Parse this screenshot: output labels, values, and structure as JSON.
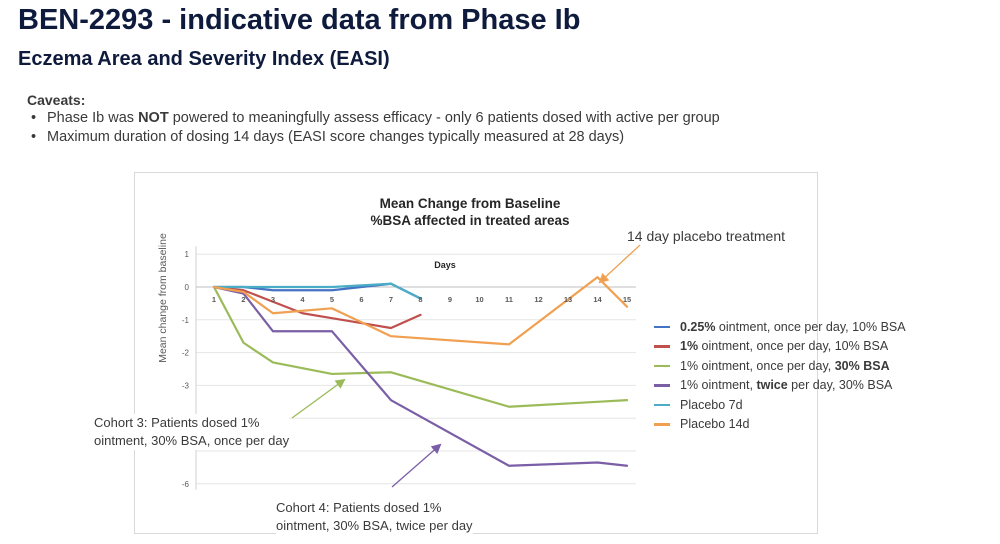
{
  "header": {
    "title": "BEN-2293 - indicative data from Phase Ib",
    "subtitle": "Eczema Area and Severity Index (EASI)"
  },
  "caveats": {
    "heading": "Caveats:",
    "items": [
      {
        "pre": "Phase Ib was ",
        "bold": "NOT",
        "post": " powered to meaningfully assess efficacy - only 6 patients dosed with active per group"
      },
      {
        "pre": "Maximum duration of dosing 14 days (EASI score changes typically measured at 28 days)",
        "bold": "",
        "post": ""
      }
    ]
  },
  "chart_data": {
    "type": "line",
    "title_line1": "Mean Change from Baseline",
    "title_line2": "%BSA affected in treated areas",
    "xlabel": "Days",
    "ylabel": "Mean change from baseline",
    "x_ticks": [
      "1",
      "2",
      "3",
      "4",
      "5",
      "6",
      "7",
      "8",
      "9",
      "10",
      "11",
      "12",
      "13",
      "14",
      "15"
    ],
    "y_ticks": [
      1,
      0,
      -1,
      -2,
      -3,
      -6
    ],
    "ylim": [
      -6,
      1
    ],
    "xlim": [
      1,
      15
    ],
    "series": [
      {
        "name": "0.25% ointment, once per day, 10% BSA",
        "name_parts": [
          {
            "t": "0.25%",
            "b": true
          },
          {
            "t": " ointment, once per day, 10% BSA",
            "b": false
          }
        ],
        "color": "#4472c4",
        "points": [
          [
            1,
            0
          ],
          [
            2,
            0
          ],
          [
            3,
            -0.1
          ],
          [
            5,
            -0.1
          ],
          [
            7,
            0.1
          ],
          [
            8,
            -0.35
          ]
        ]
      },
      {
        "name": "1% ointment, once per day, 10% BSA",
        "name_parts": [
          {
            "t": "1%",
            "b": true
          },
          {
            "t": " ointment, once per day, 10% BSA",
            "b": false
          }
        ],
        "color": "#c0504d",
        "points": [
          [
            1,
            0
          ],
          [
            2,
            -0.1
          ],
          [
            3,
            -0.45
          ],
          [
            4,
            -0.8
          ],
          [
            5,
            -0.95
          ],
          [
            7,
            -1.25
          ],
          [
            8,
            -0.85
          ]
        ]
      },
      {
        "name": "1% ointment, once per day, 30% BSA",
        "name_parts": [
          {
            "t": "1% ointment, once per day, ",
            "b": false
          },
          {
            "t": "30% BSA",
            "b": true
          }
        ],
        "color": "#9bbb59",
        "points": [
          [
            1,
            0
          ],
          [
            2,
            -1.7
          ],
          [
            3,
            -2.3
          ],
          [
            5,
            -2.65
          ],
          [
            7,
            -2.6
          ],
          [
            11,
            -3.65
          ],
          [
            14,
            -3.5
          ],
          [
            15,
            -3.45
          ]
        ]
      },
      {
        "name": "1% ointment, twice per day, 30% BSA",
        "name_parts": [
          {
            "t": "1% ointment, ",
            "b": false
          },
          {
            "t": "twice",
            "b": true
          },
          {
            "t": " per day, 30% BSA",
            "b": false
          }
        ],
        "color": "#7a5ea6",
        "points": [
          [
            1,
            0
          ],
          [
            2,
            -0.2
          ],
          [
            3,
            -1.35
          ],
          [
            5,
            -1.35
          ],
          [
            7,
            -3.45
          ],
          [
            11,
            -5.45
          ],
          [
            14,
            -5.35
          ],
          [
            15,
            -5.45
          ]
        ]
      },
      {
        "name": "Placebo 7d",
        "name_parts": [
          {
            "t": "Placebo 7d",
            "b": false
          }
        ],
        "color": "#4bacc6",
        "points": [
          [
            1,
            0
          ],
          [
            2,
            0
          ],
          [
            3,
            0
          ],
          [
            5,
            0
          ],
          [
            7,
            0.1
          ],
          [
            8,
            -0.35
          ]
        ]
      },
      {
        "name": "Placebo 14d",
        "name_parts": [
          {
            "t": "Placebo 14d",
            "b": false
          }
        ],
        "color": "#f0a050",
        "points": [
          [
            1,
            0
          ],
          [
            2,
            -0.15
          ],
          [
            3,
            -0.8
          ],
          [
            5,
            -0.65
          ],
          [
            7,
            -1.5
          ],
          [
            11,
            -1.75
          ],
          [
            14,
            0.3
          ],
          [
            15,
            -0.6
          ]
        ]
      }
    ],
    "annotations": {
      "placebo_callout": "14 day placebo treatment",
      "cohort3": [
        "Cohort 3: Patients dosed 1%",
        "ointment, 30% BSA, once per day"
      ],
      "cohort4": [
        "Cohort 4: Patients dosed 1%",
        "ointment, 30% BSA, twice per day"
      ]
    }
  }
}
